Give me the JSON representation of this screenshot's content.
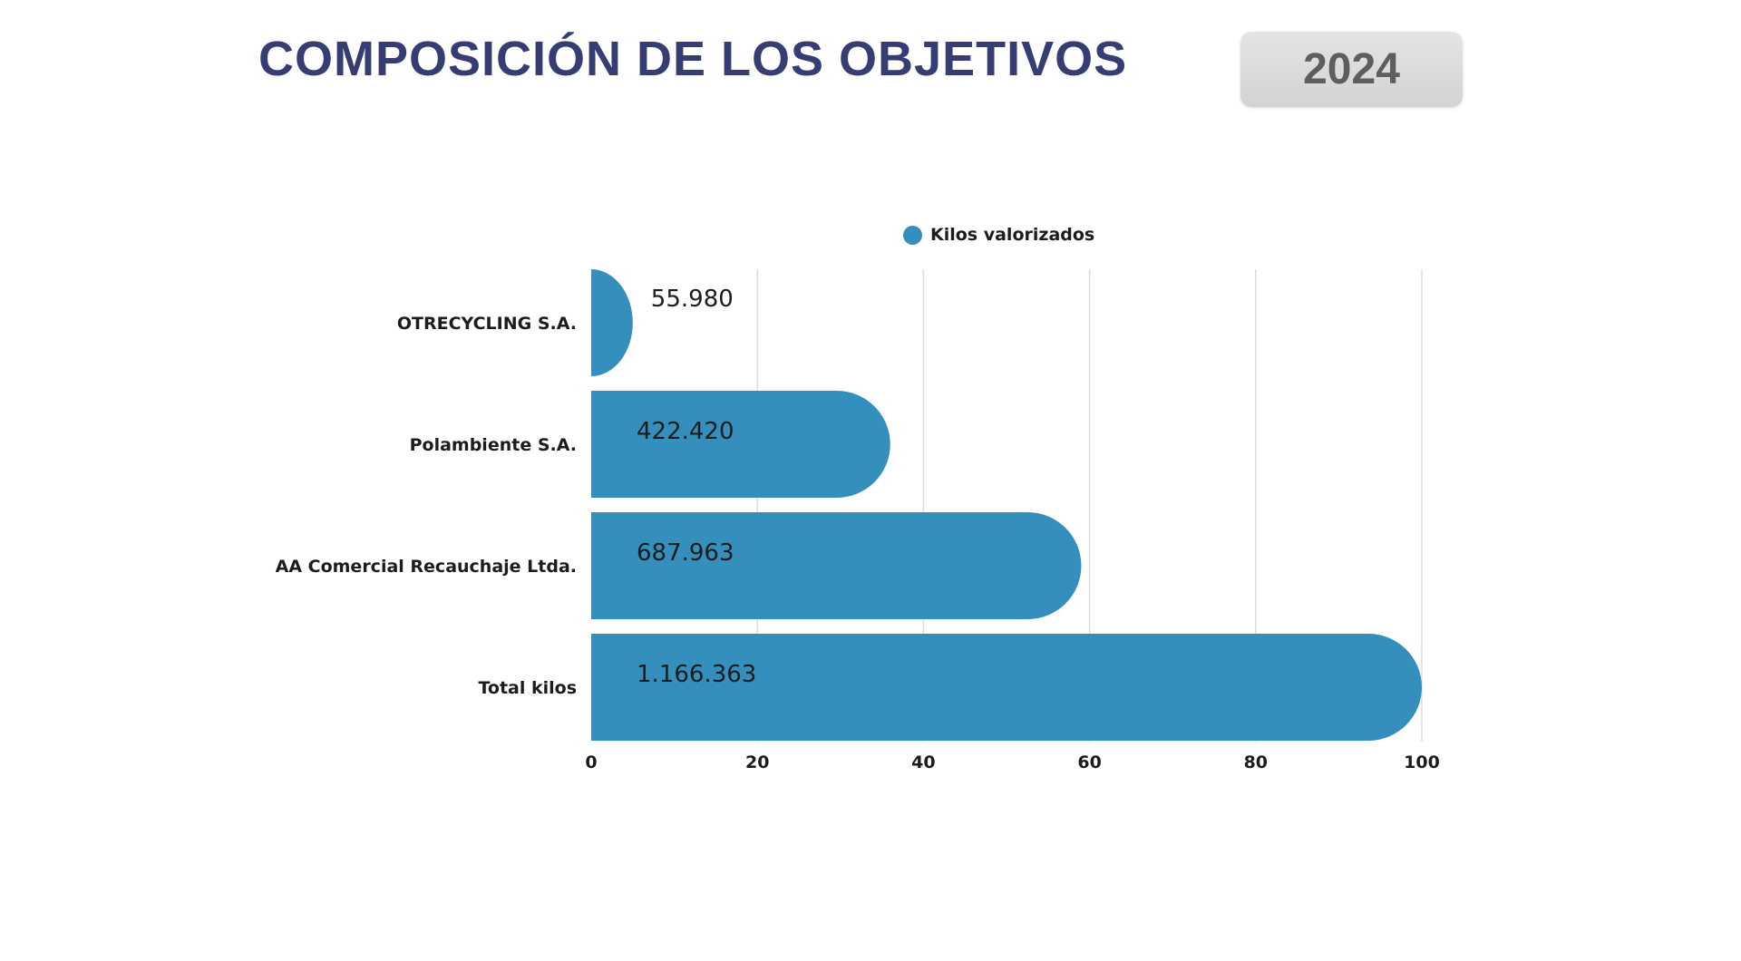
{
  "header": {
    "title": "COMPOSICIÓN DE LOS OBJETIVOS",
    "year": "2024"
  },
  "chart_data": {
    "type": "bar",
    "orientation": "horizontal",
    "categories": [
      "OTRECYCLING S.A.",
      "Polambiente S.A.",
      "AA Comercial Recauchaje Ltda.",
      "Total kilos"
    ],
    "series": [
      {
        "name": "Kilos valorizados",
        "values": [
          5,
          36,
          59,
          100
        ],
        "data_labels": [
          "55.980",
          "422.420",
          "687.963",
          "1.166.363"
        ],
        "color": "#358fbd"
      }
    ],
    "xlim": [
      0,
      100
    ],
    "xticks": [
      "0",
      "20",
      "40",
      "60",
      "80",
      "100"
    ],
    "grid": true,
    "legend_position": "top"
  }
}
